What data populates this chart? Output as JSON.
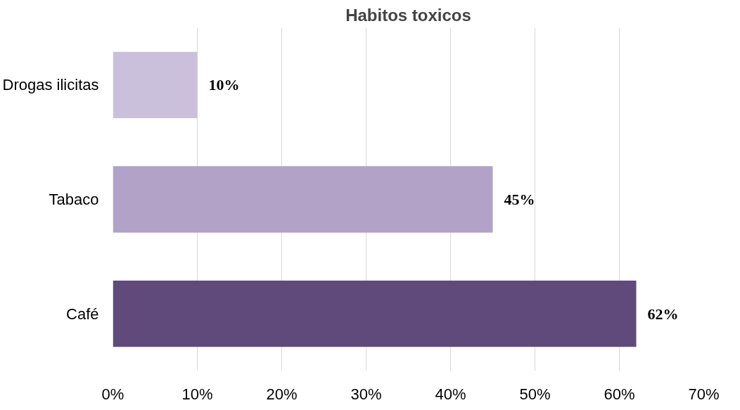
{
  "chart_data": {
    "type": "bar",
    "orientation": "horizontal",
    "title": "Habitos toxicos",
    "categories": [
      "Drogas ilicitas",
      "Tabaco",
      "Café"
    ],
    "values": [
      10,
      45,
      62
    ],
    "colors": [
      "#cbc0dc",
      "#b2a2c8",
      "#604a7b"
    ],
    "value_labels": [
      "10%",
      "45%",
      "62%"
    ],
    "xlim": [
      0,
      70
    ],
    "xticks": [
      {
        "value": 0,
        "label": "0%"
      },
      {
        "value": 10,
        "label": "10%"
      },
      {
        "value": 20,
        "label": "20%"
      },
      {
        "value": 30,
        "label": "30%"
      },
      {
        "value": 40,
        "label": "40%"
      },
      {
        "value": 50,
        "label": "50%"
      },
      {
        "value": 60,
        "label": "60%"
      },
      {
        "value": 70,
        "label": "70%"
      }
    ],
    "grid": "x"
  }
}
